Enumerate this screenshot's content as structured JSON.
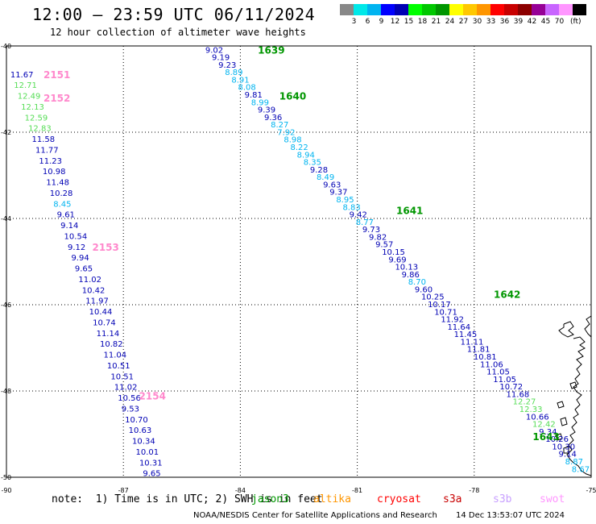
{
  "header": {
    "title": "12:00 – 23:59 UTC 06/11/2024",
    "subtitle": "12 hour collection of altimeter wave heights"
  },
  "legend": {
    "unit": "(ft)",
    "bins": [
      {
        "label": "",
        "color": "#888888"
      },
      {
        "label": "3",
        "color": "#00e8e8"
      },
      {
        "label": "6",
        "color": "#00b4f0"
      },
      {
        "label": "9",
        "color": "#0000ff"
      },
      {
        "label": "12",
        "color": "#0000b4"
      },
      {
        "label": "15",
        "color": "#00ff00"
      },
      {
        "label": "18",
        "color": "#00c800"
      },
      {
        "label": "21",
        "color": "#009600"
      },
      {
        "label": "24",
        "color": "#ffff00"
      },
      {
        "label": "27",
        "color": "#ffc800"
      },
      {
        "label": "30",
        "color": "#ff9600"
      },
      {
        "label": "33",
        "color": "#ff0000"
      },
      {
        "label": "36",
        "color": "#c80000"
      },
      {
        "label": "39",
        "color": "#8c0000"
      },
      {
        "label": "42",
        "color": "#960096"
      },
      {
        "label": "45",
        "color": "#c864ff"
      },
      {
        "label": "70",
        "color": "#ff96ff"
      },
      {
        "label": "",
        "color": "#000000"
      }
    ]
  },
  "map": {
    "extent": {
      "lon": [
        -90,
        -75
      ],
      "lat": [
        -50,
        -40
      ]
    },
    "lon_ticks": [
      {
        "v": -90,
        "t": "-90"
      },
      {
        "v": -87,
        "t": "-87"
      },
      {
        "v": -84,
        "t": "-84"
      },
      {
        "v": -81,
        "t": "-81"
      },
      {
        "v": -78,
        "t": "-78"
      },
      {
        "v": -75,
        "t": "-75"
      }
    ],
    "lat_ticks": [
      {
        "v": -40,
        "t": "-40"
      },
      {
        "v": -42,
        "t": "-42"
      },
      {
        "v": -44,
        "t": "-44"
      },
      {
        "v": -46,
        "t": "-46"
      },
      {
        "v": -48,
        "t": "-48"
      },
      {
        "v": -50,
        "t": "-50"
      }
    ],
    "colors": {
      "navy": "#0000b4",
      "cyan": "#00b4f0",
      "lightgreen": "#55dd55",
      "green": "#009600",
      "pink": "#ff88cc",
      "grid": "#000000"
    },
    "pass_labels": [
      {
        "text": "1639",
        "lon": -83.55,
        "lat": -40.08,
        "color": "green"
      },
      {
        "text": "1640",
        "lon": -83.0,
        "lat": -41.15,
        "color": "green"
      },
      {
        "text": "1641",
        "lon": -80.0,
        "lat": -43.8,
        "color": "green"
      },
      {
        "text": "1642",
        "lon": -77.5,
        "lat": -45.75,
        "color": "green"
      },
      {
        "text": "1643",
        "lon": -76.5,
        "lat": -49.05,
        "color": "green"
      },
      {
        "text": "2151",
        "lon": -89.05,
        "lat": -40.65,
        "color": "pink"
      },
      {
        "text": "2152",
        "lon": -89.05,
        "lat": -41.2,
        "color": "pink"
      },
      {
        "text": "2153",
        "lon": -87.8,
        "lat": -44.65,
        "color": "pink"
      },
      {
        "text": "2154",
        "lon": -86.6,
        "lat": -48.1,
        "color": "pink"
      }
    ],
    "tracks": [
      {
        "name": "west",
        "start": [
          -89.9,
          -40.65
        ],
        "end": [
          -86.5,
          -49.9
        ],
        "values": [
          [
            "11.67",
            "navy"
          ],
          [
            "12.71",
            "lightgreen"
          ],
          [
            "12.49",
            "lightgreen"
          ],
          [
            "12.13",
            "lightgreen"
          ],
          [
            "12.59",
            "lightgreen"
          ],
          [
            "12.83",
            "lightgreen"
          ],
          [
            "11.58",
            "navy"
          ],
          [
            "11.77",
            "navy"
          ],
          [
            "11.23",
            "navy"
          ],
          [
            "10.98",
            "navy"
          ],
          [
            "11.48",
            "navy"
          ],
          [
            "10.28",
            "navy"
          ],
          [
            "8.45",
            "cyan"
          ],
          [
            "9.61",
            "navy"
          ],
          [
            "9.14",
            "navy"
          ],
          [
            "10.54",
            "navy"
          ],
          [
            "9.12",
            "navy"
          ],
          [
            "9.94",
            "navy"
          ],
          [
            "9.65",
            "navy"
          ],
          [
            "11.02",
            "navy"
          ],
          [
            "10.42",
            "navy"
          ],
          [
            "11.97",
            "navy"
          ],
          [
            "10.44",
            "navy"
          ],
          [
            "10.74",
            "navy"
          ],
          [
            "11.14",
            "navy"
          ],
          [
            "10.82",
            "navy"
          ],
          [
            "11.04",
            "navy"
          ],
          [
            "10.51",
            "navy"
          ],
          [
            "10.51",
            "navy"
          ],
          [
            "11.02",
            "navy"
          ],
          [
            "10.56",
            "navy"
          ],
          [
            "9.53",
            "navy"
          ],
          [
            "10.70",
            "navy"
          ],
          [
            "10.63",
            "navy"
          ],
          [
            "10.34",
            "navy"
          ],
          [
            "10.01",
            "navy"
          ],
          [
            "10.31",
            "navy"
          ],
          [
            "9.65",
            "navy"
          ]
        ]
      },
      {
        "name": "east",
        "start": [
          -84.9,
          -40.08
        ],
        "end": [
          -75.5,
          -49.8
        ],
        "values": [
          [
            "9.02",
            "navy"
          ],
          [
            "9.19",
            "navy"
          ],
          [
            "9.23",
            "navy"
          ],
          [
            "8.89",
            "cyan"
          ],
          [
            "8.91",
            "cyan"
          ],
          [
            "8.08",
            "cyan"
          ],
          [
            "9.81",
            "navy"
          ],
          [
            "8.99",
            "cyan"
          ],
          [
            "9.39",
            "navy"
          ],
          [
            "9.36",
            "navy"
          ],
          [
            "8.27",
            "cyan"
          ],
          [
            "7.92",
            "cyan"
          ],
          [
            "8.98",
            "cyan"
          ],
          [
            "8.22",
            "cyan"
          ],
          [
            "8.94",
            "cyan"
          ],
          [
            "8.35",
            "cyan"
          ],
          [
            "9.28",
            "navy"
          ],
          [
            "8.49",
            "cyan"
          ],
          [
            "9.63",
            "navy"
          ],
          [
            "9.37",
            "navy"
          ],
          [
            "8.95",
            "cyan"
          ],
          [
            "8.83",
            "cyan"
          ],
          [
            "9.42",
            "navy"
          ],
          [
            "8.77",
            "cyan"
          ],
          [
            "9.73",
            "navy"
          ],
          [
            "9.82",
            "navy"
          ],
          [
            "9.57",
            "navy"
          ],
          [
            "10.15",
            "navy"
          ],
          [
            "9.69",
            "navy"
          ],
          [
            "10.13",
            "navy"
          ],
          [
            "9.86",
            "navy"
          ],
          [
            "8.70",
            "cyan"
          ],
          [
            "9.60",
            "navy"
          ],
          [
            "10.25",
            "navy"
          ],
          [
            "10.17",
            "navy"
          ],
          [
            "10.71",
            "navy"
          ],
          [
            "11.92",
            "navy"
          ],
          [
            "11.64",
            "navy"
          ],
          [
            "11.45",
            "navy"
          ],
          [
            "11.11",
            "navy"
          ],
          [
            "11.81",
            "navy"
          ],
          [
            "10.81",
            "navy"
          ],
          [
            "11.06",
            "navy"
          ],
          [
            "11.05",
            "navy"
          ],
          [
            "11.05",
            "navy"
          ],
          [
            "10.72",
            "navy"
          ],
          [
            "11.68",
            "navy"
          ],
          [
            "12.27",
            "lightgreen"
          ],
          [
            "12.33",
            "lightgreen"
          ],
          [
            "10.66",
            "navy"
          ],
          [
            "12.42",
            "lightgreen"
          ],
          [
            "9.34",
            "navy"
          ],
          [
            "10.26",
            "navy"
          ],
          [
            "10.30",
            "navy"
          ],
          [
            "9.14",
            "navy"
          ],
          [
            "8.87",
            "cyan"
          ],
          [
            "8.67",
            "cyan"
          ]
        ]
      }
    ]
  },
  "footer": {
    "note_prefix": "note:  1) Time is in UTC; 2) SWH is in feet",
    "satellites": [
      {
        "text": "jason3",
        "color": "#009600",
        "left": 312
      },
      {
        "text": "altika",
        "color": "#ff9600",
        "left": 389
      },
      {
        "text": "cryosat",
        "color": "#ff0000",
        "left": 468
      },
      {
        "text": "s3a",
        "color": "#c80000",
        "left": 550
      },
      {
        "text": "s3b",
        "color": "#c8a0ff",
        "left": 612
      },
      {
        "text": "swot",
        "color": "#ff96ff",
        "left": 670
      }
    ],
    "credit": "NOAA/NESDIS Center for Satellite Applications and Research",
    "timestamp": "14 Dec 13:53:07 UTC 2024"
  }
}
